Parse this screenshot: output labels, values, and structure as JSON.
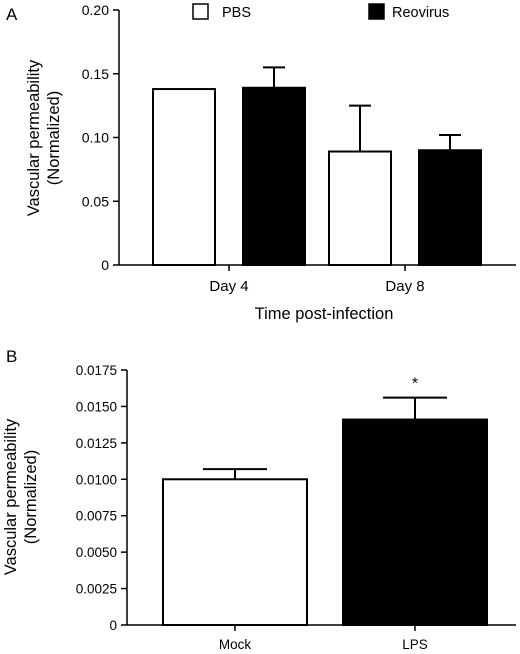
{
  "chart_data": [
    {
      "panel": "A",
      "type": "bar",
      "categories": [
        "Day 4",
        "Day 8"
      ],
      "series": [
        {
          "name": "PBS",
          "values": [
            0.138,
            0.089
          ],
          "errors": [
            0.0,
            0.036
          ],
          "color": "#ffffff"
        },
        {
          "name": "Reovirus",
          "values": [
            0.139,
            0.09
          ],
          "errors": [
            0.016,
            0.012
          ],
          "color": "#000000"
        }
      ],
      "xlabel": "Time post-infection",
      "ylabel_lines": [
        "Vascular permeability",
        "(Normalized)"
      ],
      "ylim": [
        0,
        0.2
      ],
      "yticks": [
        "0",
        "0.05",
        "0.10",
        "0.15",
        "0.20"
      ],
      "legend_position": "top"
    },
    {
      "panel": "B",
      "type": "bar",
      "categories": [
        "Mock",
        "LPS"
      ],
      "values": [
        0.01,
        0.0141
      ],
      "errors": [
        0.0007,
        0.0015
      ],
      "colors": [
        "#ffffff",
        "#000000"
      ],
      "annotations": [
        "",
        "*"
      ],
      "ylabel_lines": [
        "Vascular permeability",
        "(Normalized)"
      ],
      "ylim": [
        0,
        0.0175
      ],
      "yticks": [
        "0",
        "0.0025",
        "0.0050",
        "0.0075",
        "0.0100",
        "0.0125",
        "0.0150",
        "0.0175"
      ]
    }
  ]
}
